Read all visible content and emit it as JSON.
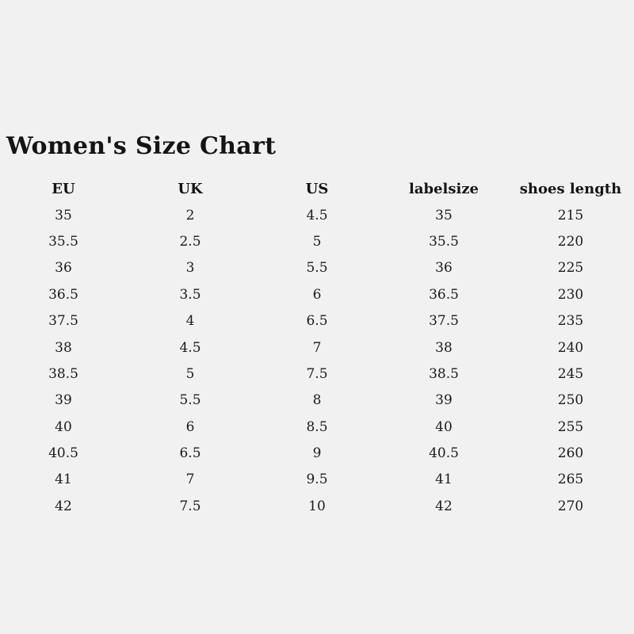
{
  "colors": {
    "background": "#f0f1f0",
    "text": "#1b1b1b",
    "title_text": "#141414"
  },
  "chart_data": {
    "type": "table",
    "title": "Women's Size Chart",
    "columns": [
      "EU",
      "UK",
      "US",
      "labelsize",
      "shoes length"
    ],
    "rows": [
      [
        "35",
        "2",
        "4.5",
        "35",
        "215"
      ],
      [
        "35.5",
        "2.5",
        "5",
        "35.5",
        "220"
      ],
      [
        "36",
        "3",
        "5.5",
        "36",
        "225"
      ],
      [
        "36.5",
        "3.5",
        "6",
        "36.5",
        "230"
      ],
      [
        "37.5",
        "4",
        "6.5",
        "37.5",
        "235"
      ],
      [
        "38",
        "4.5",
        "7",
        "38",
        "240"
      ],
      [
        "38.5",
        "5",
        "7.5",
        "38.5",
        "245"
      ],
      [
        "39",
        "5.5",
        "8",
        "39",
        "250"
      ],
      [
        "40",
        "6",
        "8.5",
        "40",
        "255"
      ],
      [
        "40.5",
        "6.5",
        "9",
        "40.5",
        "260"
      ],
      [
        "41",
        "7",
        "9.5",
        "41",
        "265"
      ],
      [
        "42",
        "7.5",
        "10",
        "42",
        "270"
      ]
    ]
  }
}
